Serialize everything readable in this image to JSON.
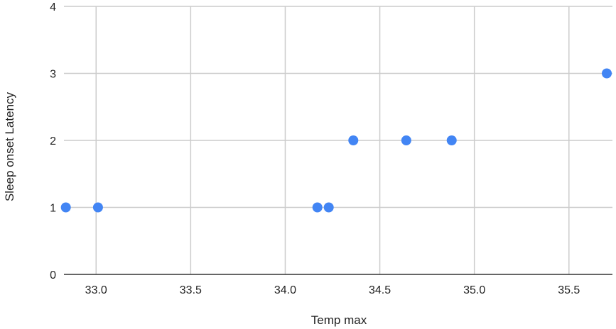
{
  "chart_data": {
    "type": "scatter",
    "title": "",
    "xlabel": "Temp max",
    "ylabel": "Sleep onset Latency",
    "xlim": [
      32.83,
      35.73
    ],
    "ylim": [
      0,
      4
    ],
    "xticks": [
      33.0,
      33.5,
      34.0,
      34.5,
      35.0,
      35.5
    ],
    "xtick_labels": [
      "33.0",
      "33.5",
      "34.0",
      "34.5",
      "35.0",
      "35.5"
    ],
    "yticks": [
      0,
      1,
      2,
      3,
      4
    ],
    "ytick_labels": [
      "0",
      "1",
      "2",
      "3",
      "4"
    ],
    "grid": true,
    "legend": "none",
    "color": "#4285f4",
    "points": [
      {
        "x": 32.84,
        "y": 1
      },
      {
        "x": 33.01,
        "y": 1
      },
      {
        "x": 34.17,
        "y": 1
      },
      {
        "x": 34.23,
        "y": 1
      },
      {
        "x": 34.36,
        "y": 2
      },
      {
        "x": 34.64,
        "y": 2
      },
      {
        "x": 34.88,
        "y": 2
      },
      {
        "x": 35.7,
        "y": 3
      }
    ]
  }
}
